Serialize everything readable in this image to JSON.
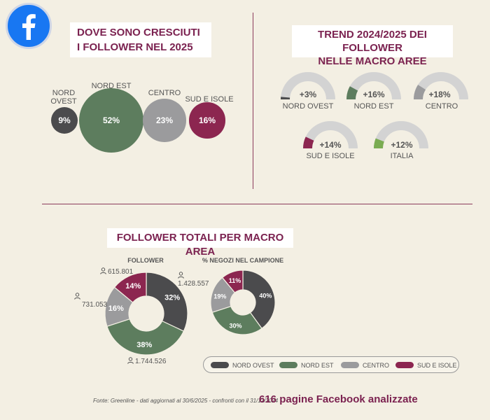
{
  "logo": {
    "icon": "facebook-icon",
    "letter": "f"
  },
  "colors": {
    "nord_ovest": "#4b4b4d",
    "nord_est": "#5d7d5e",
    "centro": "#9b9b9d",
    "sud_isole": "#8c2650",
    "gauge_track": "#d3d3d3",
    "title": "#7b2250",
    "italia": "#7aac52"
  },
  "section_growth": {
    "title_line1": "DOVE SONO CRESCIUTI",
    "title_line2": "I FOLLOWER NEL 2025"
  },
  "section_trend": {
    "title_line1": "TREND 2024/2025 DEI FOLLOWER",
    "title_line2": "NELLE MACRO AREE"
  },
  "section_totals": {
    "title": "FOLLOWER TOTALI PER MACRO AREA",
    "follower_label": "FOLLOWER",
    "negozi_label": "% NEGOZI NEL CAMPIONE",
    "counts": {
      "nord_ovest": "1.428.557",
      "nord_est": "1.744.526",
      "centro": "731.053",
      "sud_isole": "615.801"
    }
  },
  "legend": {
    "nord_ovest": "NORD OVEST",
    "nord_est": "NORD EST",
    "centro": "CENTRO",
    "sud_isole": "SUD E ISOLE"
  },
  "footer": {
    "source": "Fonte: Greenline - dati aggiornati al 30/6/2025 - confronti con il 31/12/2024",
    "pages": "616 pagine Facebook analizzate"
  },
  "chart_data": [
    {
      "type": "bubble",
      "title": "DOVE SONO CRESCIUTI I FOLLOWER NEL 2025",
      "categories": [
        "NORD OVEST",
        "NORD EST",
        "CENTRO",
        "SUD E ISOLE"
      ],
      "label_lines": [
        [
          "NORD",
          "OVEST"
        ],
        [
          "NORD EST"
        ],
        [
          "CENTRO"
        ],
        [
          "SUD E ISOLE"
        ]
      ],
      "values": [
        9,
        52,
        23,
        16
      ],
      "value_labels": [
        "9%",
        "52%",
        "23%",
        "16%"
      ],
      "unit": "%"
    },
    {
      "type": "gauge",
      "title": "TREND 2024/2025 DEI FOLLOWER NELLE MACRO AREE",
      "categories": [
        "NORD OVEST",
        "NORD EST",
        "CENTRO",
        "SUD E ISOLE",
        "ITALIA"
      ],
      "values": [
        3,
        16,
        18,
        14,
        12
      ],
      "value_labels": [
        "+3%",
        "+16%",
        "+18%",
        "+14%",
        "+12%"
      ],
      "unit": "%"
    },
    {
      "type": "pie",
      "title": "FOLLOWER",
      "categories": [
        "NORD OVEST",
        "NORD EST",
        "CENTRO",
        "SUD E ISOLE"
      ],
      "values": [
        32,
        38,
        16,
        14
      ],
      "value_labels": [
        "32%",
        "38%",
        "16%",
        "14%"
      ],
      "unit": "%"
    },
    {
      "type": "pie",
      "title": "% NEGOZI NEL CAMPIONE",
      "categories": [
        "NORD OVEST",
        "NORD EST",
        "CENTRO",
        "SUD E ISOLE"
      ],
      "values": [
        40,
        30,
        19,
        11
      ],
      "value_labels": [
        "40%",
        "30%",
        "19%",
        "11%"
      ],
      "unit": "%"
    }
  ]
}
